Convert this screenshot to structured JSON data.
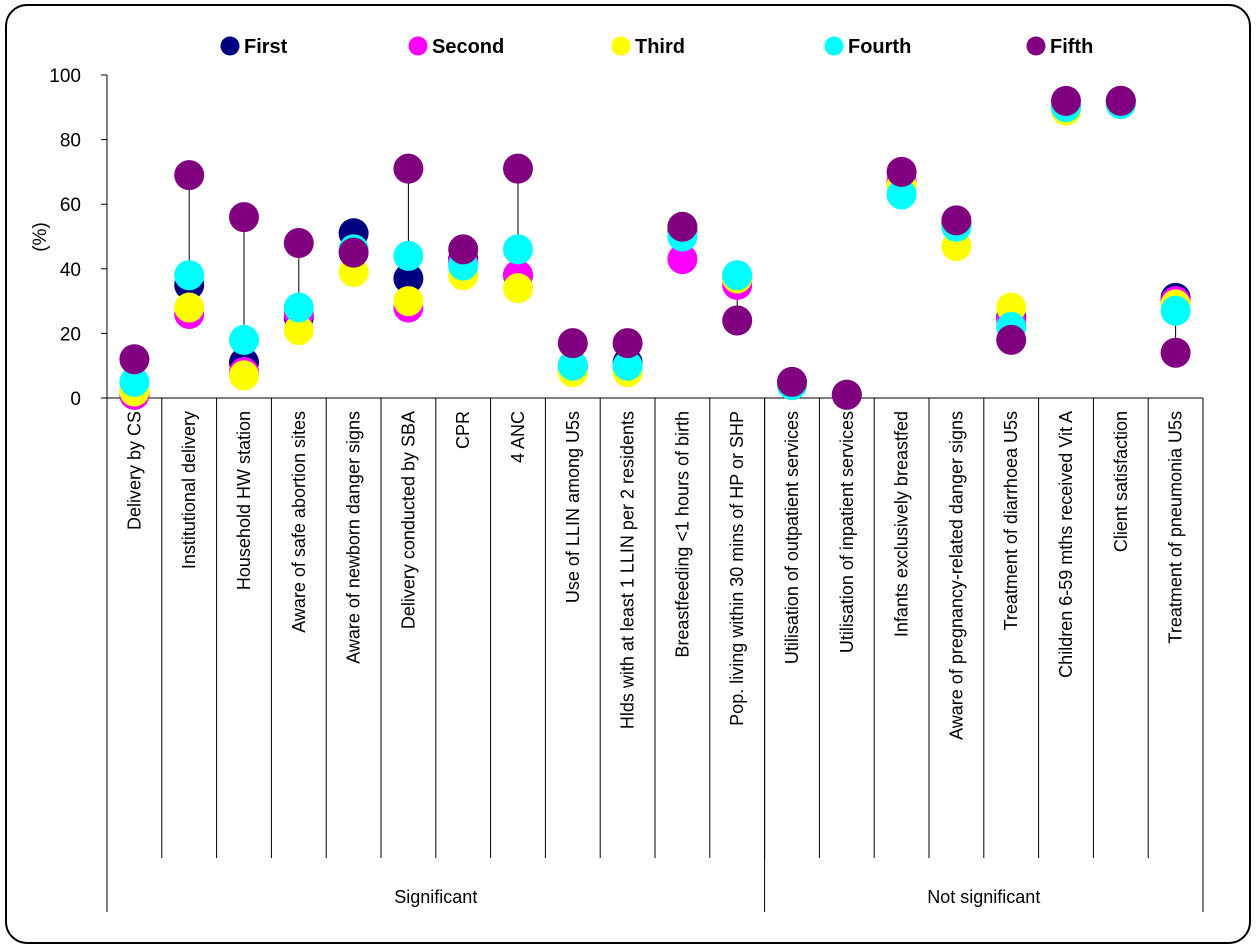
{
  "chart_data": {
    "type": "scatter",
    "ylabel": "(%)",
    "xlabel": "",
    "title": "",
    "ylim": [
      0,
      100
    ],
    "yticks": [
      0,
      20,
      40,
      60,
      80,
      100
    ],
    "grid": false,
    "legend": "top",
    "categories": [
      "Delivery by CS",
      "Institutional delivery",
      "Household HW station",
      "Aware of safe abortion sites",
      "Aware of newborn danger signs",
      "Delivery conducted by SBA",
      "CPR",
      "4 ANC",
      "Use of LLIN among U5s",
      "Hlds with at least 1 LLIN per 2 residents",
      "Breastfeeding <1 hours of birth",
      "Pop. living within 30 mins of HP or SHP",
      "Utilisation of outpatient services",
      "Utilisation of inpatient services",
      "Infants exclusively breastfed",
      "Aware of pregnancy-related danger signs",
      "Treatment of diarrhoea U5s",
      "Children 6-59 mths received Vit A",
      "Client satisfaction",
      "Treatment of pneumonia U5s"
    ],
    "groups": [
      {
        "label": "Significant",
        "count": 12
      },
      {
        "label": "Not significant",
        "count": 8
      }
    ],
    "series": [
      {
        "name": "First",
        "color": "#000080",
        "values": [
          1,
          35,
          11,
          25,
          51,
          37,
          43,
          38,
          10,
          11,
          52,
          37,
          4,
          1,
          67,
          54,
          25,
          90,
          92,
          31
        ]
      },
      {
        "name": "Second",
        "color": "#ff00ff",
        "values": [
          1,
          26,
          8,
          26,
          46,
          28,
          42,
          38,
          9,
          9,
          43,
          35,
          4,
          1,
          67,
          53,
          24,
          90,
          91,
          30
        ]
      },
      {
        "name": "Third",
        "color": "#ffff00",
        "values": [
          2,
          28,
          7,
          21,
          39,
          30,
          38,
          34,
          8,
          8,
          53,
          37,
          4,
          1,
          66,
          47,
          28,
          89,
          91,
          29
        ]
      },
      {
        "name": "Fourth",
        "color": "#00ffff",
        "values": [
          5,
          38,
          18,
          28,
          46,
          44,
          41,
          46,
          10,
          10,
          50,
          38,
          4,
          1,
          63,
          53,
          22,
          90,
          91,
          27
        ]
      },
      {
        "name": "Fifth",
        "color": "#800080",
        "values": [
          12,
          69,
          56,
          48,
          45,
          71,
          46,
          71,
          17,
          17,
          53,
          24,
          5,
          1,
          70,
          55,
          18,
          92,
          92,
          14
        ]
      }
    ]
  }
}
